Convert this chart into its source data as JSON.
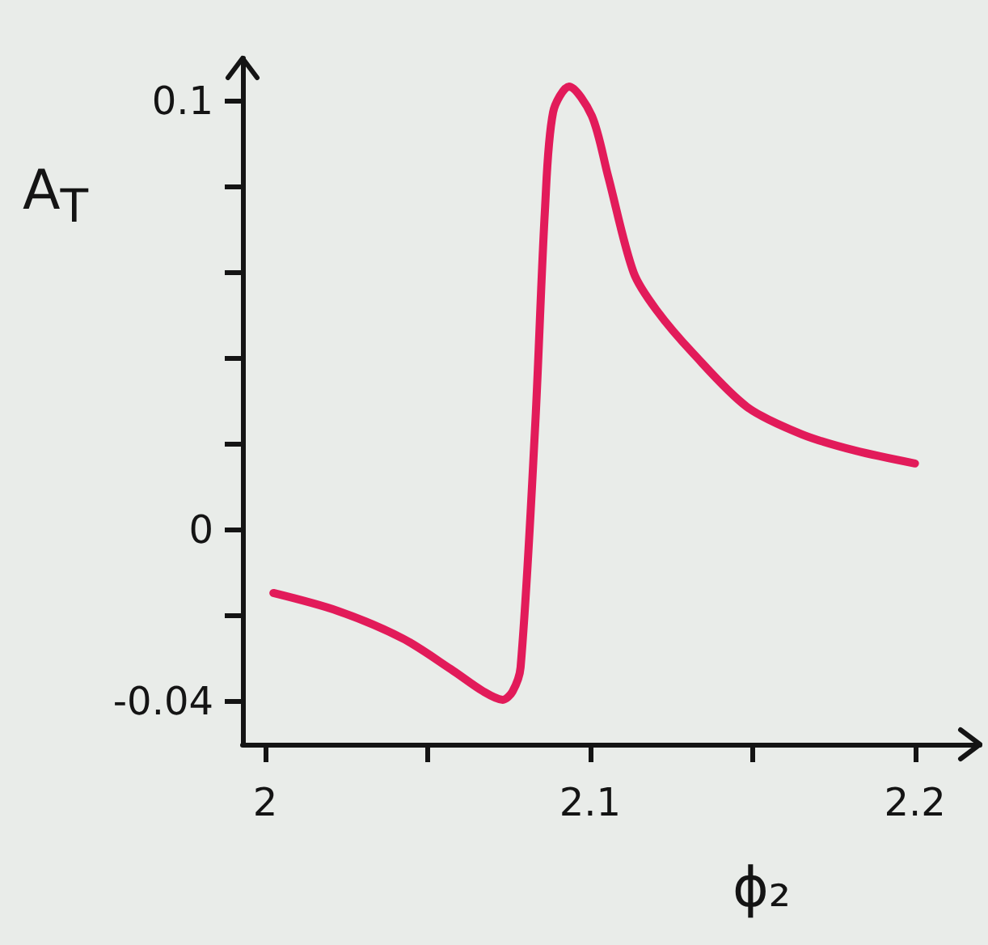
{
  "chart_data": {
    "type": "line",
    "xlabel": "ϕ₂",
    "ylabel": "A$_{T}$",
    "x": [
      2.0025,
      2.0224,
      2.0423,
      2.0572,
      2.0672,
      2.0731,
      2.0761,
      2.0786,
      2.0831,
      2.0861,
      2.0886,
      2.0935,
      2.1005,
      2.1055,
      2.1134,
      2.1204,
      2.1318,
      2.1483,
      2.1652,
      2.1816,
      2.2
    ],
    "series": [
      {
        "color": "#e21b5a",
        "values": [
          -0.0147,
          -0.0189,
          -0.0253,
          -0.0325,
          -0.0377,
          -0.0396,
          -0.0377,
          -0.032,
          0.0245,
          0.0747,
          0.0974,
          0.1034,
          0.0966,
          0.0826,
          0.06,
          0.0513,
          0.0411,
          0.0287,
          0.0223,
          0.0185,
          0.0155
        ]
      }
    ],
    "xlim": [
      1.993,
      2.22
    ],
    "ylim": [
      -0.05,
      0.11
    ],
    "xticks": [
      2,
      {
        "value": 2.05,
        "label": null
      },
      2.1,
      {
        "value": 2.15,
        "label": null
      },
      2.2
    ],
    "yticks": [
      -0.04,
      {
        "value": -0.02,
        "label": null
      },
      0,
      {
        "value": 0.02,
        "label": null
      },
      {
        "value": 0.04,
        "label": null
      },
      {
        "value": 0.06,
        "label": null
      },
      {
        "value": 0.08,
        "label": null
      },
      0.1
    ],
    "grid": false,
    "marker": "none",
    "line_style": "solid"
  }
}
